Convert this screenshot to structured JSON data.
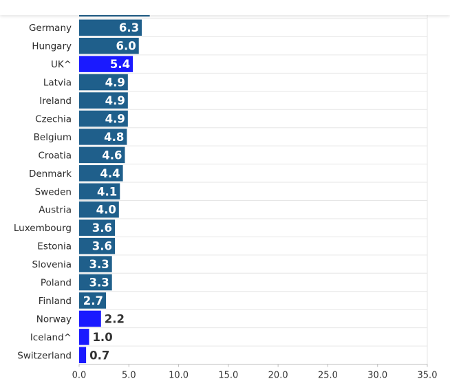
{
  "chart_data": {
    "type": "bar",
    "orientation": "horizontal",
    "title": "",
    "xlabel": "",
    "ylabel": "",
    "xlim": [
      0,
      35
    ],
    "xticks": [
      "0.0",
      "5.0",
      "10.0",
      "15.0",
      "20.0",
      "25.0",
      "30.0",
      "35.0"
    ],
    "categories": [
      "Germany",
      "Hungary",
      "UK^",
      "Latvia",
      "Ireland",
      "Czechia",
      "Belgium",
      "Croatia",
      "Denmark",
      "Sweden",
      "Austria",
      "Luxembourg",
      "Estonia",
      "Slovenia",
      "Poland",
      "Finland",
      "Norway",
      "Iceland^",
      "Switzerland"
    ],
    "values": [
      6.3,
      6.0,
      5.4,
      4.9,
      4.9,
      4.9,
      4.8,
      4.6,
      4.4,
      4.1,
      4.0,
      3.6,
      3.6,
      3.3,
      3.3,
      2.7,
      2.2,
      1.0,
      0.7
    ],
    "labels": [
      "6.3",
      "6.0",
      "5.4",
      "4.9",
      "4.9",
      "4.9",
      "4.8",
      "4.6",
      "4.4",
      "4.1",
      "4.0",
      "3.6",
      "3.6",
      "3.3",
      "3.3",
      "2.7",
      "2.2",
      "1.0",
      "0.7"
    ],
    "highlighted": [
      "UK^",
      "Norway",
      "Iceland^",
      "Switzerland"
    ],
    "grid": true,
    "colors": {
      "default": "#1f5f8b",
      "highlight": "#1a1aff",
      "label_inside": "#ffffff",
      "label_outside": "#333333",
      "grid": "#e6e6e6"
    }
  }
}
